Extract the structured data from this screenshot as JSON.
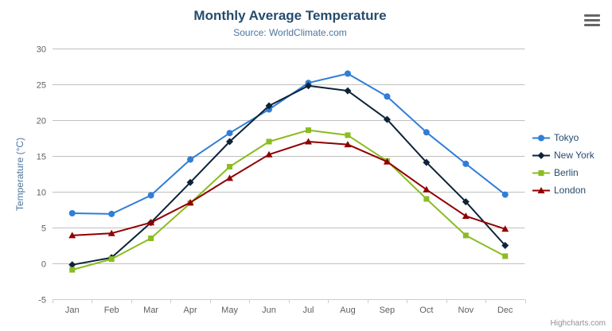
{
  "chart": {
    "credits": "Highcharts.com",
    "menu_icon": "hamburger-icon",
    "style": {
      "title_color": "#274b6d",
      "subtitle_color": "#4d759e",
      "axis_title_color": "#4d759e",
      "axis_label_color": "#606060",
      "grid_color": "#C0C0C0",
      "axis_line_color": "#C0D0E0",
      "legend_text_color": "#274b6d",
      "credits_color": "#909090"
    }
  },
  "chart_data": {
    "type": "line",
    "title": "Monthly Average Temperature",
    "subtitle": "Source: WorldClimate.com",
    "xlabel": "",
    "ylabel": "Temperature (°C)",
    "ylim": [
      -5,
      30
    ],
    "ytick_step": 5,
    "grid": true,
    "legend_position": "right",
    "categories": [
      "Jan",
      "Feb",
      "Mar",
      "Apr",
      "May",
      "Jun",
      "Jul",
      "Aug",
      "Sep",
      "Oct",
      "Nov",
      "Dec"
    ],
    "series": [
      {
        "name": "Tokyo",
        "color": "#2f7ed8",
        "marker": "circle",
        "values": [
          7.0,
          6.9,
          9.5,
          14.5,
          18.2,
          21.5,
          25.2,
          26.5,
          23.3,
          18.3,
          13.9,
          9.6
        ]
      },
      {
        "name": "New York",
        "color": "#0d233a",
        "marker": "diamond",
        "values": [
          -0.2,
          0.8,
          5.7,
          11.3,
          17.0,
          22.0,
          24.8,
          24.1,
          20.1,
          14.1,
          8.6,
          2.5
        ]
      },
      {
        "name": "Berlin",
        "color": "#8bbc21",
        "marker": "square",
        "values": [
          -0.9,
          0.6,
          3.5,
          8.4,
          13.5,
          17.0,
          18.6,
          17.9,
          14.3,
          9.0,
          3.9,
          1.0
        ]
      },
      {
        "name": "London",
        "color": "#910000",
        "marker": "triangle",
        "values": [
          3.9,
          4.2,
          5.7,
          8.5,
          11.9,
          15.2,
          17.0,
          16.6,
          14.2,
          10.3,
          6.6,
          4.8
        ]
      }
    ]
  }
}
